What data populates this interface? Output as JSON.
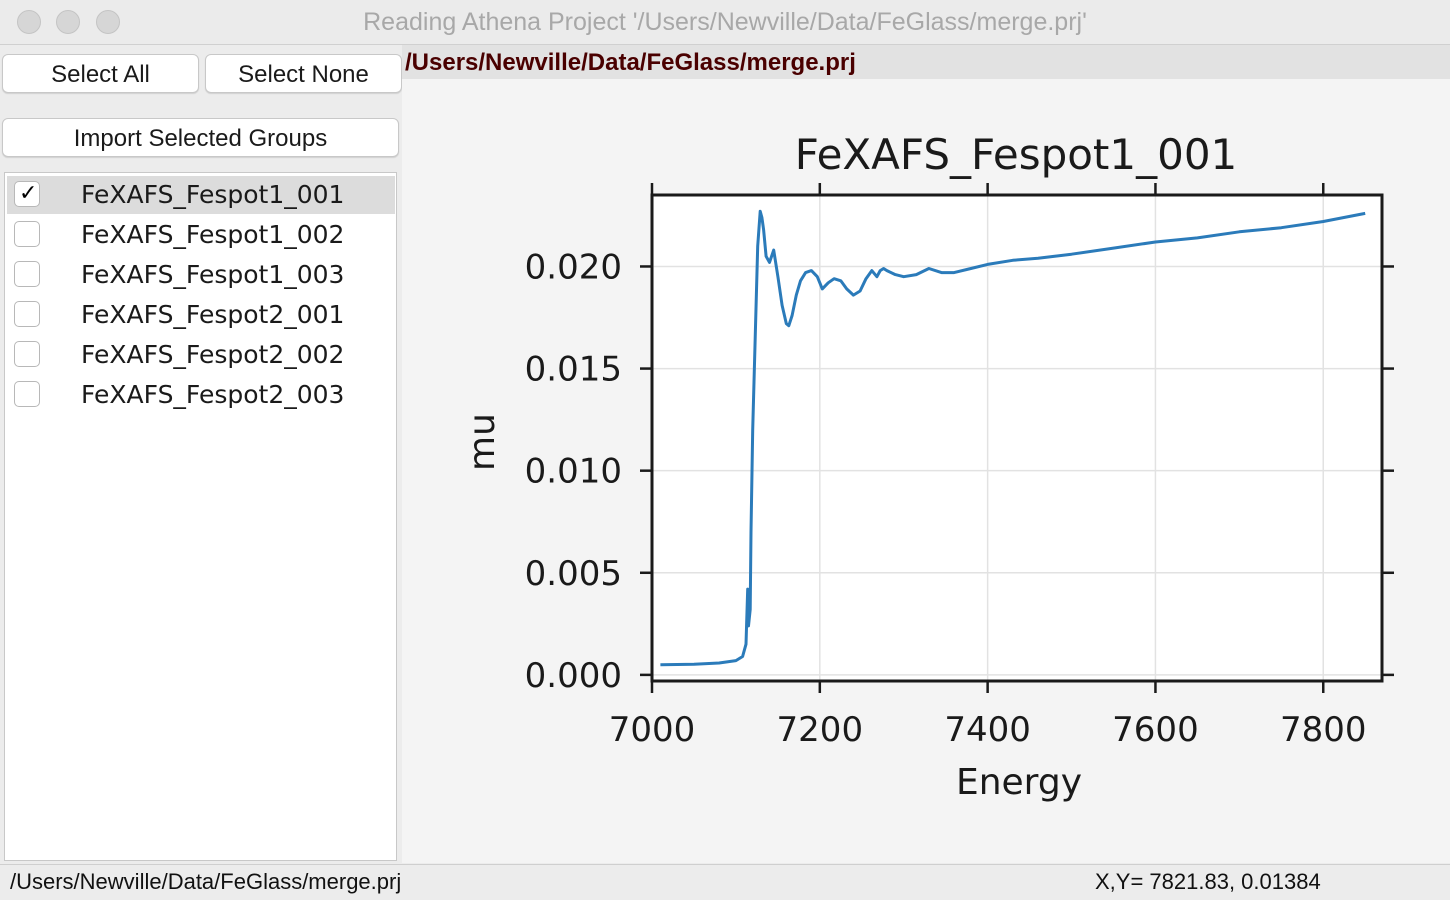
{
  "window": {
    "title": "Reading Athena Project '/Users/Newville/Data/FeGlass/merge.prj'"
  },
  "toolbar": {
    "select_all_label": "Select All",
    "select_none_label": "Select None",
    "import_label": "Import Selected Groups"
  },
  "groups": {
    "items": [
      {
        "label": "FeXAFS_Fespot1_001",
        "checked": true
      },
      {
        "label": "FeXAFS_Fespot1_002",
        "checked": false
      },
      {
        "label": "FeXAFS_Fespot1_003",
        "checked": false
      },
      {
        "label": "FeXAFS_Fespot2_001",
        "checked": false
      },
      {
        "label": "FeXAFS_Fespot2_002",
        "checked": false
      },
      {
        "label": "FeXAFS_Fespot2_003",
        "checked": false
      }
    ]
  },
  "path_label": "/Users/Newville/Data/FeGlass/merge.prj",
  "status": {
    "path": "/Users/Newville/Data/FeGlass/merge.prj",
    "coords": "X,Y= 7821.83, 0.01384"
  },
  "colors": {
    "line": "#2b7bba",
    "path_text": "#4a0000"
  },
  "chart_data": {
    "type": "line",
    "title": "FeXAFS_Fespot1_001",
    "xlabel": "Energy",
    "ylabel": "mu",
    "xlim": [
      7000,
      7870
    ],
    "ylim": [
      -0.0003,
      0.0235
    ],
    "xticks": [
      7000,
      7200,
      7400,
      7600,
      7800
    ],
    "xtick_labels": [
      "7000",
      "7200",
      "7400",
      "7600",
      "7800"
    ],
    "yticks": [
      0.0,
      0.005,
      0.01,
      0.015,
      0.02
    ],
    "ytick_labels": [
      "0.000",
      "0.005",
      "0.010",
      "0.015",
      "0.020"
    ],
    "grid": true,
    "series": [
      {
        "name": "",
        "x": [
          7010,
          7050,
          7080,
          7100,
          7108,
          7112,
          7114,
          7115,
          7117,
          7118,
          7120,
          7123,
          7126,
          7129,
          7131,
          7133,
          7136,
          7140,
          7145,
          7150,
          7155,
          7160,
          7163,
          7167,
          7172,
          7177,
          7183,
          7190,
          7197,
          7203,
          7210,
          7217,
          7225,
          7232,
          7240,
          7248,
          7255,
          7262,
          7268,
          7272,
          7276,
          7280,
          7290,
          7300,
          7315,
          7330,
          7345,
          7360,
          7380,
          7400,
          7430,
          7460,
          7500,
          7550,
          7600,
          7650,
          7700,
          7750,
          7800,
          7850
        ],
        "y": [
          0.0005,
          0.00052,
          0.00058,
          0.0007,
          0.0009,
          0.0015,
          0.0042,
          0.0024,
          0.0032,
          0.007,
          0.012,
          0.0165,
          0.021,
          0.0227,
          0.0224,
          0.0218,
          0.0205,
          0.0202,
          0.0208,
          0.0195,
          0.0181,
          0.0172,
          0.0171,
          0.0176,
          0.0186,
          0.0193,
          0.0197,
          0.0198,
          0.0195,
          0.0189,
          0.0192,
          0.0194,
          0.0193,
          0.0189,
          0.0186,
          0.0188,
          0.0194,
          0.0198,
          0.0195,
          0.0198,
          0.0199,
          0.0198,
          0.0196,
          0.0195,
          0.0196,
          0.0199,
          0.0197,
          0.0197,
          0.0199,
          0.0201,
          0.0203,
          0.0204,
          0.0206,
          0.0209,
          0.0212,
          0.0214,
          0.0217,
          0.0219,
          0.0222,
          0.0226
        ]
      }
    ]
  }
}
